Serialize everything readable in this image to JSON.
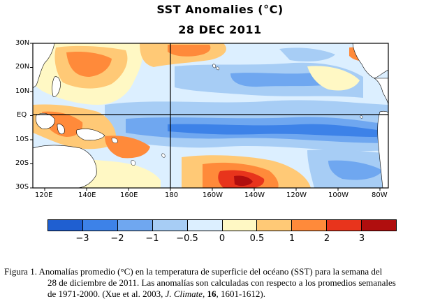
{
  "map": {
    "title": "SST Anomalies (°C)",
    "date": "28 DEC 2011",
    "lat_labels": [
      "30N",
      "20N",
      "10N",
      "EQ",
      "10S",
      "20S",
      "30S"
    ],
    "lon_labels": [
      "120E",
      "140E",
      "160E",
      "180",
      "160W",
      "140W",
      "120W",
      "100W",
      "80W"
    ],
    "colors": {
      "c_lt_neg3": "#1f5fd1",
      "c_neg3_neg2": "#3d82e8",
      "c_neg2_neg1": "#6fa7f0",
      "c_neg1_neg05": "#a7cdf5",
      "c_neg05_0": "#dcefff",
      "c_0_05": "#fff8c4",
      "c_05_1": "#ffc976",
      "c_1_2": "#ff8a3a",
      "c_2_3": "#e8341c",
      "c_gt3": "#b00e0e",
      "land": "#ffffff"
    }
  },
  "colorbar": {
    "ticks": [
      "−3",
      "−2",
      "−1",
      "−0.5",
      "0",
      "0.5",
      "1",
      "2",
      "3"
    ]
  },
  "caption": {
    "line1": "Figura 1. Anomalías promedio (°C) en la temperatura de superficie del océano (SST) para la semana del",
    "line2": "28 de diciembre de 2011.  Las anomalías son calculadas con respecto a los promedios semanales",
    "line3_pre": "de 1971-2000. (Xue et al. 2003, ",
    "line3_journal": "J. Climate",
    "line3_sep": ", ",
    "line3_vol": "16",
    "line3_post": ", 1601-1612)."
  }
}
